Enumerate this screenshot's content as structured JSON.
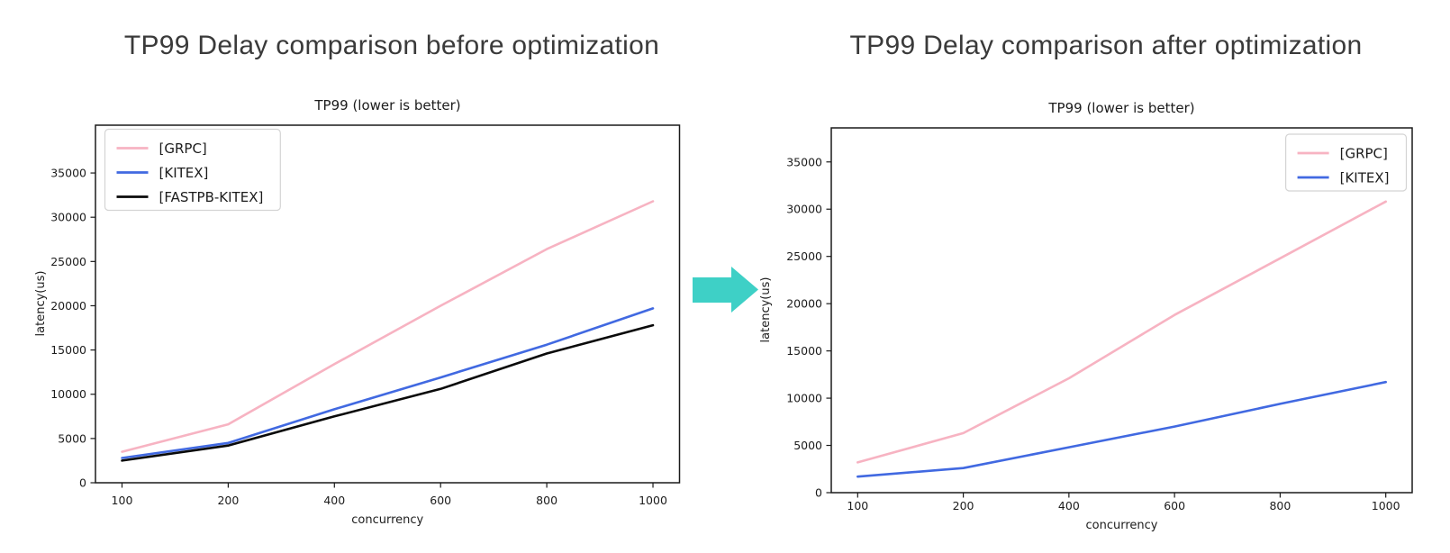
{
  "page": {
    "background": "#ffffff"
  },
  "headings": {
    "before": "TP99 Delay comparison before optimization",
    "after": "TP99 Delay comparison after optimization"
  },
  "arrow": {
    "name": "transition-arrow",
    "direction": "right",
    "color": "#3ED0C6"
  },
  "chart_data": [
    {
      "id": "before",
      "type": "line",
      "title": "TP99 (lower is better)",
      "xlabel": "concurrency",
      "ylabel": "latency(us)",
      "categories": [
        "100",
        "200",
        "400",
        "600",
        "800",
        "1000"
      ],
      "series": [
        {
          "name": "[GRPC]",
          "color": "#F7B3C2",
          "values": [
            3500,
            6600,
            13400,
            20000,
            26400,
            31800
          ]
        },
        {
          "name": "[KITEX]",
          "color": "#4169E1",
          "values": [
            2800,
            4500,
            8300,
            11900,
            15600,
            19700
          ]
        },
        {
          "name": "[FASTPB-KITEX]",
          "color": "#0A0A0A",
          "values": [
            2500,
            4200,
            7500,
            10600,
            14600,
            17800
          ]
        }
      ],
      "yticks": [
        0,
        5000,
        10000,
        15000,
        20000,
        25000,
        30000,
        35000
      ],
      "ylim": [
        0,
        40400
      ],
      "grid": false,
      "legend_position": "upper-left"
    },
    {
      "id": "after",
      "type": "line",
      "title": "TP99 (lower is better)",
      "xlabel": "concurrency",
      "ylabel": "latency(us)",
      "categories": [
        "100",
        "200",
        "400",
        "600",
        "800",
        "1000"
      ],
      "series": [
        {
          "name": "[GRPC]",
          "color": "#F7B3C2",
          "values": [
            3200,
            6300,
            12100,
            18800,
            24800,
            30800
          ]
        },
        {
          "name": "[KITEX]",
          "color": "#4169E1",
          "values": [
            1700,
            2600,
            4800,
            7000,
            9400,
            11700
          ]
        }
      ],
      "yticks": [
        0,
        5000,
        10000,
        15000,
        20000,
        25000,
        30000,
        35000
      ],
      "ylim": [
        0,
        38600
      ],
      "grid": false,
      "legend_position": "upper-right"
    }
  ]
}
